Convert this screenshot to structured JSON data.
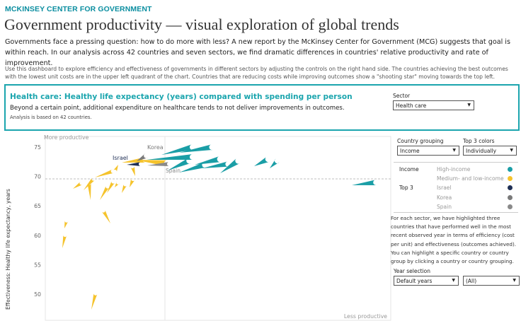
{
  "header": {
    "brand": "MCKINSEY CENTER FOR GOVERNMENT",
    "title": "Government productivity — visual exploration of global trends",
    "intro": "Governments face a pressing question: how to do more with less? A new report by the McKinsey Center for Government (MCG) suggests that goal is within reach. In our analysis across 42 countries and seven sectors, we find dramatic differences in countries' relative productivity and rate of improvement.",
    "description": "Use this dashboard to explore efficiency and effectiveness of governments in different sectors by adjusting the controls on the right hand side. The countries achieving the best outcomes with the lowest unit costs are in the upper left quadrant of the chart. Countries that are reducing costs while improving outcomes show a \"shooting star\" moving towards the top left."
  },
  "highlight": {
    "heading": "Health care: Healthy life expectancy (years) compared with spending per person",
    "subheading": "Beyond a certain point, additional expenditure on healthcare tends to not deliver improvements in outcomes.",
    "note": "Analysis is based on 42 countries."
  },
  "controls": {
    "sector_label": "Sector",
    "sector_value": "Health care",
    "country_grouping_label": "Country grouping",
    "country_grouping_value": "Income",
    "top3_colors_label": "Top 3 colors",
    "top3_colors_value": "Individually",
    "year_selection_label": "Year selection",
    "year_value": "Default years",
    "year_filter_value": "(All)"
  },
  "legend": {
    "groups": [
      {
        "name": "Income",
        "items": [
          {
            "label": "High-income",
            "color": "#1a9ea6"
          },
          {
            "label": "Medium- and low-income",
            "color": "#f5c32c"
          }
        ]
      },
      {
        "name": "Top 3",
        "items": [
          {
            "label": "Israel",
            "color": "#1f2f55"
          },
          {
            "label": "Korea",
            "color": "#7a7a7a"
          },
          {
            "label": "Spain",
            "color": "#8a8a8a"
          }
        ]
      }
    ]
  },
  "info_text": "For each sector, we have highlighted three countries that have performed well in the most recent observed year in terms of efficiency (cost per unit) and effectiveness (outcomes achieved). You can highlight a specific country or country group by clicking a country or country grouping.",
  "chart_data": {
    "type": "scatter",
    "ylabel": "Effectiveness: Healthy life expectancy, years",
    "yticks": [
      75,
      70,
      65,
      60,
      55,
      50
    ],
    "annotations": {
      "top_left": "More productive",
      "bottom_right": "Less productive"
    },
    "reference_line_y": 69.5,
    "point_labels": [
      "Israel",
      "Korea",
      "Spain"
    ],
    "colors": {
      "high_income": "#1a9ea6",
      "medium_low_income": "#f5c32c",
      "israel": "#1f2f55",
      "korea": "#7a7a7a",
      "spain": "#8a8a8a"
    }
  }
}
